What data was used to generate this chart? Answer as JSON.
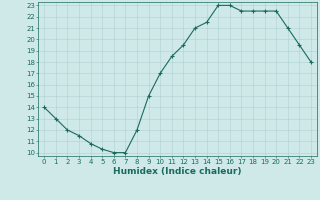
{
  "x": [
    0,
    1,
    2,
    3,
    4,
    5,
    6,
    7,
    8,
    9,
    10,
    11,
    12,
    13,
    14,
    15,
    16,
    17,
    18,
    19,
    20,
    21,
    22,
    23
  ],
  "y": [
    14,
    13,
    12,
    11.5,
    10.8,
    10.3,
    10.0,
    10.0,
    12.0,
    15.0,
    17.0,
    18.5,
    19.5,
    21.0,
    21.5,
    23.0,
    23.0,
    22.5,
    22.5,
    22.5,
    22.5,
    21.0,
    19.5,
    18.0
  ],
  "xlabel": "Humidex (Indice chaleur)",
  "bg_color": "#cfe9e9",
  "line_color": "#1a6b5a",
  "grid_color": "#b0d0d0",
  "ylim": [
    9.7,
    23.3
  ],
  "xlim": [
    -0.5,
    23.5
  ],
  "xticks": [
    0,
    1,
    2,
    3,
    4,
    5,
    6,
    7,
    8,
    9,
    10,
    11,
    12,
    13,
    14,
    15,
    16,
    17,
    18,
    19,
    20,
    21,
    22,
    23
  ],
  "yticks": [
    10,
    11,
    12,
    13,
    14,
    15,
    16,
    17,
    18,
    19,
    20,
    21,
    22,
    23
  ],
  "tick_fontsize": 5.0,
  "xlabel_fontsize": 6.5,
  "linewidth": 0.8,
  "markersize": 3.5
}
